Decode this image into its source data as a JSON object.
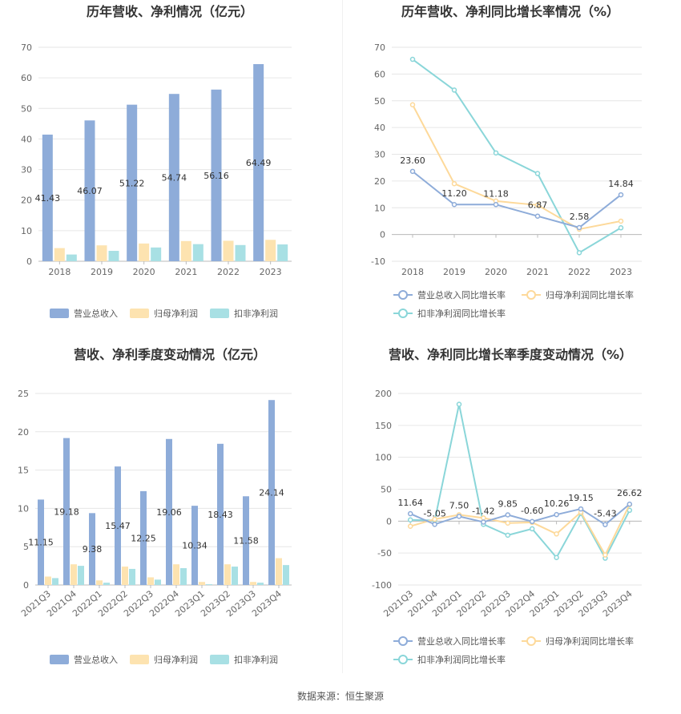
{
  "source_label": "数据来源：恒生聚源",
  "colors": {
    "revenue": "#8eacd9",
    "net_profit": "#fde3b0",
    "deducted_profit": "#a8e0e4",
    "net_profit_line": "#fdd99a",
    "deducted_line": "#8ad6d9"
  },
  "chart_data": [
    {
      "type": "bar",
      "title": "历年营收、净利情况（亿元）",
      "categories": [
        "2018",
        "2019",
        "2020",
        "2021",
        "2022",
        "2023"
      ],
      "series": [
        {
          "name": "营业总收入",
          "values": [
            41.43,
            46.07,
            51.22,
            54.74,
            56.16,
            64.49
          ],
          "labels": [
            "41.43",
            "46.07",
            "51.22",
            "54.74",
            "56.16",
            "64.49"
          ]
        },
        {
          "name": "归母净利润",
          "values": [
            4.3,
            5.2,
            5.8,
            6.6,
            6.7,
            7.0
          ]
        },
        {
          "name": "扣非净利润",
          "values": [
            2.2,
            3.4,
            4.5,
            5.6,
            5.3,
            5.5
          ]
        }
      ],
      "ylim": [
        0,
        70
      ],
      "yticks": [
        0,
        10,
        20,
        30,
        40,
        50,
        60,
        70
      ]
    },
    {
      "type": "line",
      "title": "历年营收、净利同比增长率情况（%）",
      "categories": [
        "2018",
        "2019",
        "2020",
        "2021",
        "2022",
        "2023"
      ],
      "series": [
        {
          "name": "营业总收入同比增长率",
          "values": [
            23.6,
            11.2,
            11.18,
            6.87,
            2.58,
            14.84
          ],
          "labels": [
            "23.60",
            "11.20",
            "11.18",
            "6.87",
            "2.58",
            "14.84"
          ]
        },
        {
          "name": "归母净利润同比增长率",
          "values": [
            48.5,
            19.0,
            12.5,
            11.0,
            2.0,
            5.0
          ]
        },
        {
          "name": "扣非净利润同比增长率",
          "values": [
            65.5,
            54.0,
            30.5,
            22.8,
            -6.8,
            2.5
          ]
        }
      ],
      "ylim": [
        -10,
        70
      ],
      "yticks": [
        -10,
        0,
        10,
        20,
        30,
        40,
        50,
        60,
        70
      ]
    },
    {
      "type": "bar",
      "title": "营收、净利季度变动情况（亿元）",
      "categories": [
        "2021Q3",
        "2021Q4",
        "2022Q1",
        "2022Q2",
        "2022Q3",
        "2022Q4",
        "2023Q1",
        "2023Q2",
        "2023Q3",
        "2023Q4"
      ],
      "series": [
        {
          "name": "营业总收入",
          "values": [
            11.15,
            19.18,
            9.38,
            15.47,
            12.25,
            19.06,
            10.34,
            18.43,
            11.58,
            24.14
          ],
          "labels": [
            "11.15",
            "19.18",
            "9.38",
            "15.47",
            "12.25",
            "19.06",
            "10.34",
            "18.43",
            "11.58",
            "24.14"
          ]
        },
        {
          "name": "归母净利润",
          "values": [
            1.1,
            2.7,
            0.6,
            2.4,
            1.0,
            2.7,
            0.4,
            2.7,
            0.4,
            3.5
          ]
        },
        {
          "name": "扣非净利润",
          "values": [
            0.9,
            2.5,
            0.3,
            2.1,
            0.7,
            2.2,
            0.1,
            2.4,
            0.3,
            2.6
          ]
        }
      ],
      "ylim": [
        0,
        25
      ],
      "yticks": [
        0,
        5,
        10,
        15,
        20,
        25
      ]
    },
    {
      "type": "line",
      "title": "营收、净利同比增长率季度变动情况（%）",
      "categories": [
        "2021Q3",
        "2021Q4",
        "2022Q1",
        "2022Q2",
        "2022Q3",
        "2022Q4",
        "2023Q1",
        "2023Q2",
        "2023Q3",
        "2023Q4"
      ],
      "series": [
        {
          "name": "营业总收入同比增长率",
          "values": [
            11.64,
            -5.05,
            7.5,
            -1.42,
            9.85,
            -0.6,
            10.26,
            19.15,
            -5.43,
            26.62
          ],
          "labels": [
            "11.64",
            "-5.05",
            "7.50",
            "-1.42",
            "9.85",
            "-0.60",
            "10.26",
            "19.15",
            "-5.43",
            "26.62"
          ]
        },
        {
          "name": "归母净利润同比增长率",
          "values": [
            -8,
            3,
            10,
            5,
            -3,
            -2,
            -20,
            14,
            -53,
            26
          ]
        },
        {
          "name": "扣非净利润同比增长率",
          "values": [
            2,
            1,
            183,
            -5,
            -22,
            -12,
            -57,
            12,
            -58,
            17
          ]
        }
      ],
      "ylim": [
        -100,
        200
      ],
      "yticks": [
        -100,
        -50,
        0,
        50,
        100,
        150,
        200
      ]
    }
  ]
}
